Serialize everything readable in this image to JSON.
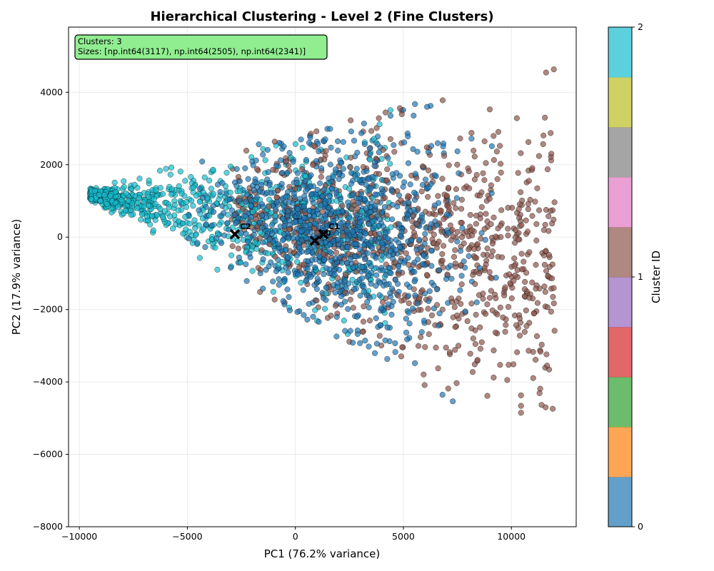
{
  "chart_data": {
    "type": "scatter",
    "title": "Hierarchical Clustering - Level 2 (Fine Clusters)",
    "xlabel": "PC1 (76.2% variance)",
    "ylabel": "PC2 (17.9% variance)",
    "xlim": [
      -10500,
      13000
    ],
    "ylim": [
      -8000,
      5800
    ],
    "xticks": [
      -10000,
      -5000,
      0,
      5000,
      10000
    ],
    "xtick_labels": [
      "−10000",
      "−5000",
      "0",
      "5000",
      "10000"
    ],
    "yticks": [
      -8000,
      -6000,
      -4000,
      -2000,
      0,
      2000,
      4000
    ],
    "ytick_labels": [
      "−8000",
      "−6000",
      "−4000",
      "−2000",
      "0",
      "2000",
      "4000"
    ],
    "grid": true,
    "info_box": {
      "line1": "Clusters: 3",
      "line2": "Sizes: [np.int64(3117), np.int64(2505), np.int64(2341)]",
      "background": "#90ee90"
    },
    "clusters": [
      {
        "id": 0,
        "size": 3117,
        "color": "#1f77b4",
        "region": "center"
      },
      {
        "id": 1,
        "size": 2505,
        "color": "#8c564b",
        "region": "right"
      },
      {
        "id": 2,
        "size": 2341,
        "color": "#17becf",
        "region": "left"
      }
    ],
    "centroids": [
      {
        "label": "C0",
        "x": 900,
        "y": -100
      },
      {
        "label": "C1",
        "x": 1300,
        "y": 80
      },
      {
        "label": "C2",
        "x": -2800,
        "y": 80
      }
    ],
    "colorbar": {
      "label": "Cluster ID",
      "ticks": [
        0,
        1,
        2
      ],
      "tick_labels": [
        "0",
        "1",
        "2"
      ],
      "bands": [
        "#1f77b4",
        "#ff7f0e",
        "#2ca02c",
        "#d62728",
        "#9467bd",
        "#8c564b",
        "#e377c2",
        "#7f7f7f",
        "#bcbd22",
        "#17becf"
      ]
    }
  }
}
